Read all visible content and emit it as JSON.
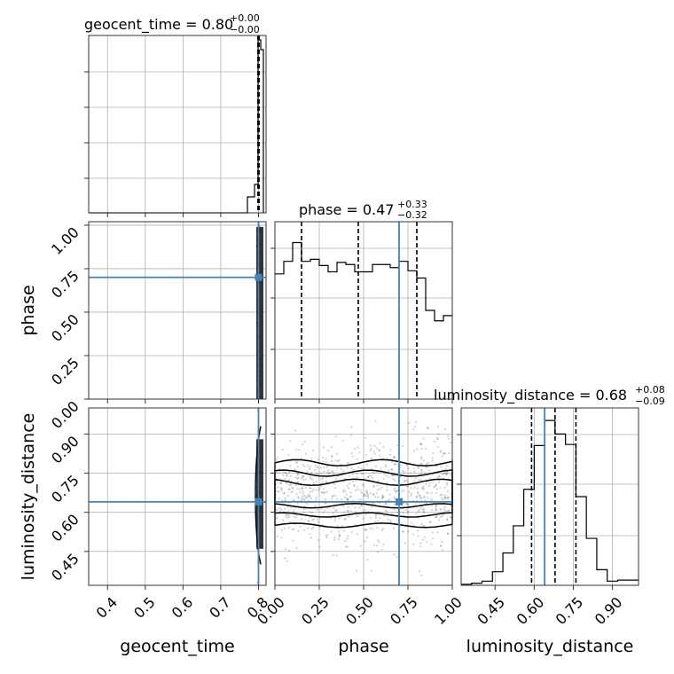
{
  "chart_data": [
    {
      "type": "histogram",
      "panel": "geocent_time marginal",
      "title": {
        "param": "geocent_time",
        "value": "0.80",
        "plus": "+0.00",
        "minus": "−0.00"
      },
      "xlim": [
        0.35,
        0.82
      ],
      "x_ticks": [
        0.4,
        0.5,
        0.6,
        0.7,
        0.8
      ],
      "quantile_lines": [
        0.7985,
        0.8,
        0.8015
      ]
    },
    {
      "type": "histogram",
      "panel": "phase marginal",
      "title": {
        "param": "phase",
        "value": "0.47",
        "plus": "+0.33",
        "minus": "−0.32"
      },
      "xlim": [
        0.0,
        1.0
      ],
      "x_ticks": [
        0.0,
        0.25,
        0.5,
        0.75,
        1.0
      ],
      "bins": [
        0.0,
        0.05,
        0.1,
        0.15,
        0.2,
        0.25,
        0.3,
        0.35,
        0.4,
        0.45,
        0.5,
        0.55,
        0.6,
        0.65,
        0.7,
        0.75,
        0.8,
        0.85,
        0.9,
        0.95,
        1.0
      ],
      "counts": [
        120,
        132,
        150,
        132,
        134,
        128,
        122,
        131,
        129,
        122,
        122,
        129,
        129,
        126,
        132,
        123,
        116,
        85,
        75,
        80
      ],
      "ylim": [
        0,
        170
      ],
      "quantile_lines": [
        0.15,
        0.47,
        0.8
      ],
      "truth": 0.7
    },
    {
      "type": "histogram",
      "panel": "luminosity_distance marginal",
      "title": {
        "param": "luminosity_distance",
        "value": "0.68",
        "plus": "+0.08",
        "minus": "−0.09"
      },
      "xlim": [
        0.32,
        1.0
      ],
      "x_ticks": [
        0.45,
        0.6,
        0.75,
        0.9
      ],
      "bins": [
        0.32,
        0.36,
        0.4,
        0.44,
        0.48,
        0.52,
        0.56,
        0.6,
        0.64,
        0.68,
        0.72,
        0.76,
        0.8,
        0.84,
        0.88,
        0.92,
        0.96,
        1.0
      ],
      "counts": [
        1,
        2,
        4,
        13,
        31,
        57,
        92,
        134,
        158,
        145,
        135,
        85,
        45,
        15,
        4,
        5,
        5
      ],
      "ylim": [
        0,
        170
      ],
      "quantile_lines": [
        0.59,
        0.68,
        0.76
      ],
      "truth": 0.64
    },
    {
      "type": "scatter",
      "panel": "phase vs geocent_time",
      "xlim": [
        0.35,
        0.82
      ],
      "ylim": [
        0.0,
        1.02
      ],
      "y_ticks": [
        0.0,
        0.25,
        0.5,
        0.75,
        1.0
      ],
      "truth": {
        "x": 0.8,
        "y": 0.7
      }
    },
    {
      "type": "scatter",
      "panel": "luminosity_distance vs geocent_time",
      "xlim": [
        0.35,
        0.82
      ],
      "ylim": [
        0.32,
        1.0
      ],
      "y_ticks": [
        0.45,
        0.6,
        0.75,
        0.9
      ],
      "truth": {
        "x": 0.8,
        "y": 0.64
      }
    },
    {
      "type": "scatter",
      "panel": "luminosity_distance vs phase",
      "xlim": [
        0.0,
        1.0
      ],
      "ylim": [
        0.32,
        1.0
      ],
      "truth": {
        "x": 0.7,
        "y": 0.64
      },
      "density_center": 0.67,
      "density_spread": 0.08
    }
  ],
  "tick_labels": {
    "geocent_time": [
      "0.4",
      "0.5",
      "0.6",
      "0.7",
      "0.8"
    ],
    "phase_x": [
      "0.00",
      "0.25",
      "0.50",
      "0.75",
      "1.00"
    ],
    "luminosity_distance_x": [
      "0.45",
      "0.60",
      "0.75",
      "0.90"
    ],
    "phase_y": [
      "0.00",
      "0.25",
      "0.50",
      "0.75",
      "1.00"
    ],
    "luminosity_distance_y": [
      "0.45",
      "0.60",
      "0.75",
      "0.90"
    ]
  },
  "axis_labels": {
    "x1": "geocent_time",
    "x2": "phase",
    "x3": "luminosity_distance",
    "y2": "phase",
    "y3": "luminosity_distance"
  },
  "colors": {
    "truth": "#4682b4",
    "histogram": "#000000",
    "grid": "#b0b0b0",
    "points": "#000000"
  }
}
